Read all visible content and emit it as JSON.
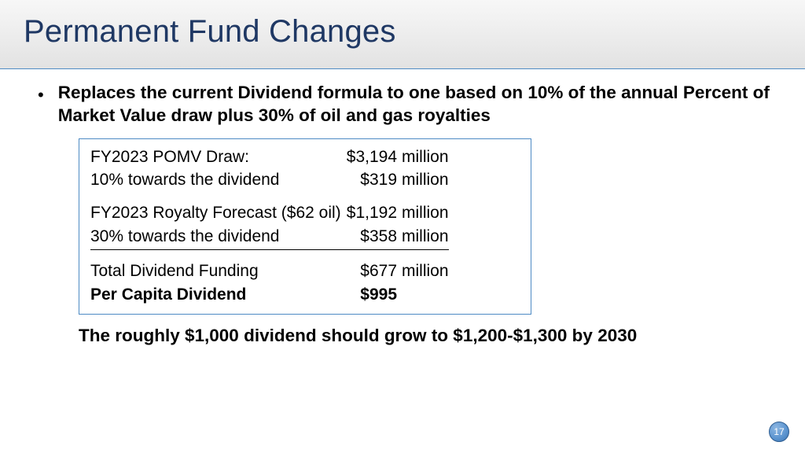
{
  "colors": {
    "title": "#1f3864",
    "header_gradient_top": "#f7f7f7",
    "header_gradient_bottom": "#e2e2e2",
    "header_border": "#4e8bc4",
    "box_border": "#4e8bc4",
    "text": "#000000",
    "page_bg": "#ffffff",
    "badge_fill": "#5a93cf",
    "badge_text": "#ffffff"
  },
  "title": "Permanent Fund Changes",
  "bullet": "Replaces the current Dividend formula to one based on 10% of the annual Percent of Market Value draw plus 30% of oil and gas royalties",
  "table": {
    "rows": [
      {
        "label": "FY2023 POMV Draw:",
        "amount": "$3,194",
        "unit": "million",
        "underline": false,
        "bold": false
      },
      {
        "label": "10% towards the dividend",
        "amount": "$319",
        "unit": "million",
        "underline": false,
        "bold": false
      },
      {
        "spacer": true
      },
      {
        "label": "FY2023 Royalty Forecast ($62 oil)",
        "amount": "$1,192",
        "unit": "million",
        "underline": false,
        "bold": false
      },
      {
        "label": "30% towards the dividend",
        "amount": "$358",
        "unit": "million",
        "underline": true,
        "bold": false
      },
      {
        "spacer": true
      },
      {
        "label": "Total Dividend Funding",
        "amount": "$677",
        "unit": "million",
        "underline": false,
        "bold": false
      },
      {
        "label": "Per Capita Dividend",
        "amount": "$995",
        "unit": "",
        "underline": false,
        "bold": true
      }
    ]
  },
  "closing": "The roughly $1,000 dividend should grow to $1,200-$1,300 by 2030",
  "page_number": "17"
}
